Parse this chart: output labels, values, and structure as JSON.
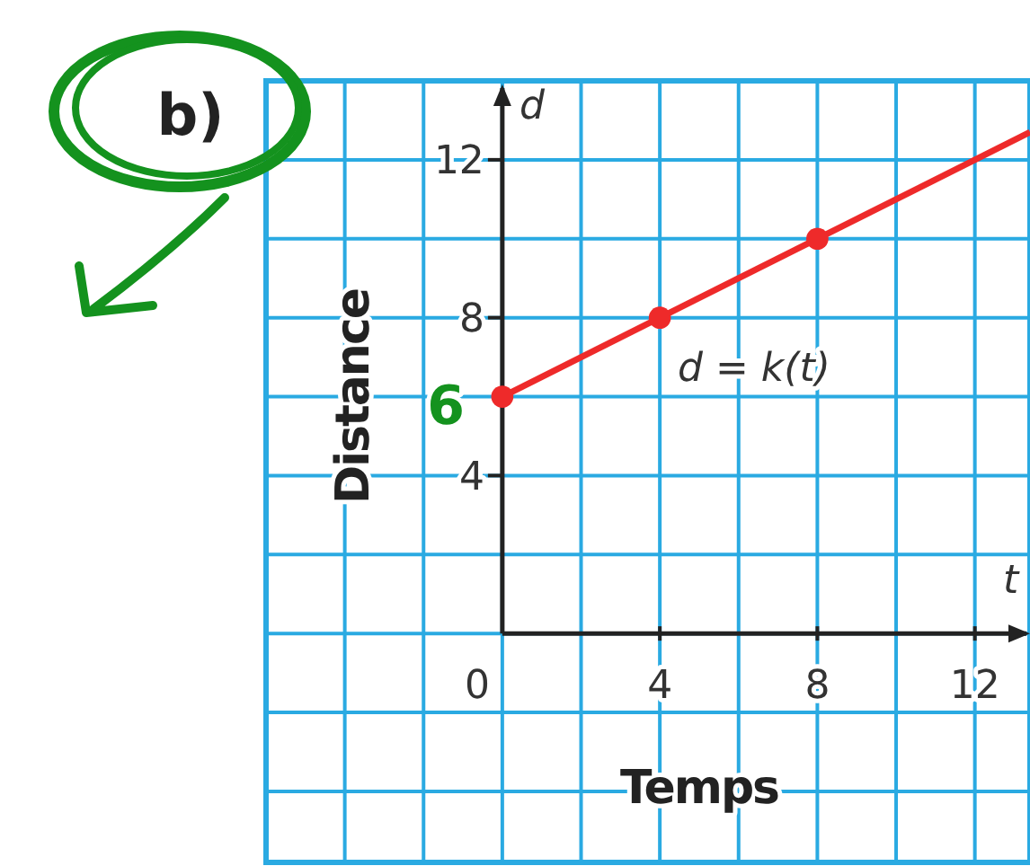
{
  "chart_data": {
    "type": "line",
    "title": "b)",
    "xlabel": "Temps",
    "ylabel": "Distance",
    "xlim": [
      -6,
      13.4
    ],
    "ylim": [
      -5.8,
      14
    ],
    "xticks": [
      {
        "value": -6,
        "label": null
      },
      {
        "value": -4,
        "label": null
      },
      {
        "value": -2,
        "label": null
      },
      0,
      {
        "value": 2,
        "label": null
      },
      4,
      {
        "value": 6,
        "label": null
      },
      8,
      {
        "value": 10,
        "label": null
      },
      12
    ],
    "yticks": [
      {
        "value": -4,
        "label": null
      },
      {
        "value": -2,
        "label": null
      },
      {
        "value": 0,
        "label": null
      },
      {
        "value": 2,
        "label": null
      },
      4,
      {
        "value": 6,
        "label": null
      },
      8,
      {
        "value": 10,
        "label": null
      },
      12,
      {
        "value": 14,
        "label": null
      }
    ],
    "grid": true,
    "series": [
      {
        "type": "line",
        "color": "#ee2a2a",
        "x": [
          0,
          13.4
        ],
        "values": [
          6,
          12.7
        ],
        "marker": "none"
      },
      {
        "type": "scatter",
        "color": "#ee2a2a",
        "x": [
          0,
          4,
          8
        ],
        "values": [
          6,
          8,
          10
        ],
        "marker": "circle"
      }
    ],
    "annotations": [
      "d = k(t)",
      "d",
      "t",
      "6"
    ]
  }
}
